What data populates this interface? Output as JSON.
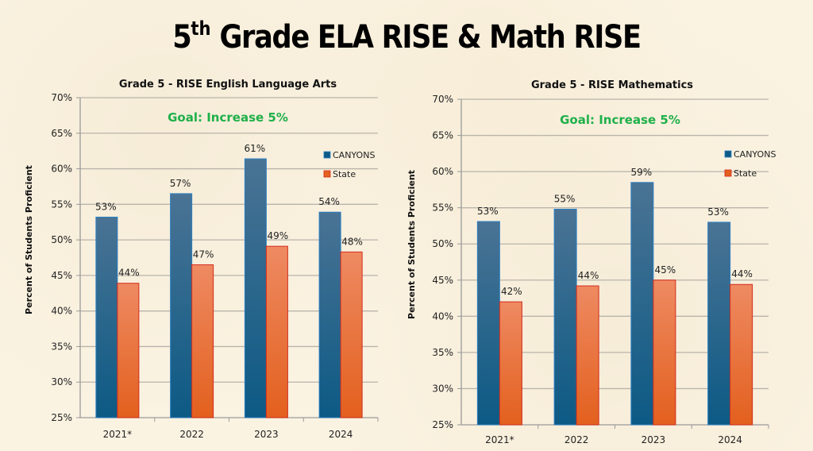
{
  "slide": {
    "title_prefix": "5",
    "title_superscript": "th",
    "title_rest": " Grade ELA RISE & Math RISE"
  },
  "colors": {
    "canyons_top": "#4a7394",
    "canyons_bottom": "#0c5a85",
    "canyons_edge": "#2b7fc4",
    "state_top": "#ee8a62",
    "state_bottom": "#e3601e",
    "state_edge": "#d42a1a",
    "goal": "#1fb04a",
    "grid": "#b9b4ab"
  },
  "chart_data": [
    {
      "type": "bar",
      "title": "Grade 5 - RISE English Language Arts",
      "annotation": "Goal: Increase 5%",
      "xlabel": "",
      "ylabel": "Percent of Students Proficient",
      "ylim": [
        25,
        70
      ],
      "yticks": [
        25,
        30,
        35,
        40,
        45,
        50,
        55,
        60,
        65,
        70
      ],
      "ytick_labels": [
        "25%",
        "30%",
        "35%",
        "40%",
        "45%",
        "50%",
        "55%",
        "60%",
        "65%",
        "70%"
      ],
      "grid": true,
      "legend_position": "right",
      "categories": [
        "2021*",
        "2022",
        "2023",
        "2024"
      ],
      "series": [
        {
          "name": "CANYONS",
          "values": [
            53.2,
            56.5,
            61.4,
            53.9
          ],
          "labels": [
            "53%",
            "57%",
            "61%",
            "54%"
          ]
        },
        {
          "name": "State",
          "values": [
            43.9,
            46.5,
            49.1,
            48.3
          ],
          "labels": [
            "44%",
            "47%",
            "49%",
            "48%"
          ]
        }
      ]
    },
    {
      "type": "bar",
      "title": "Grade 5 - RISE Mathematics",
      "annotation": "Goal: Increase 5%",
      "xlabel": "",
      "ylabel": "Percent of Students Proficient",
      "ylim": [
        25,
        70
      ],
      "yticks": [
        25,
        30,
        35,
        40,
        45,
        50,
        55,
        60,
        65,
        70
      ],
      "ytick_labels": [
        "25%",
        "30%",
        "35%",
        "40%",
        "45%",
        "50%",
        "55%",
        "60%",
        "65%",
        "70%"
      ],
      "grid": true,
      "legend_position": "right",
      "categories": [
        "2021*",
        "2022",
        "2023",
        "2024"
      ],
      "series": [
        {
          "name": "CANYONS",
          "values": [
            53.1,
            54.8,
            58.5,
            53.0
          ],
          "labels": [
            "53%",
            "55%",
            "59%",
            "53%"
          ]
        },
        {
          "name": "State",
          "values": [
            42.0,
            44.2,
            45.0,
            44.4
          ],
          "labels": [
            "42%",
            "44%",
            "45%",
            "44%"
          ]
        }
      ]
    }
  ]
}
